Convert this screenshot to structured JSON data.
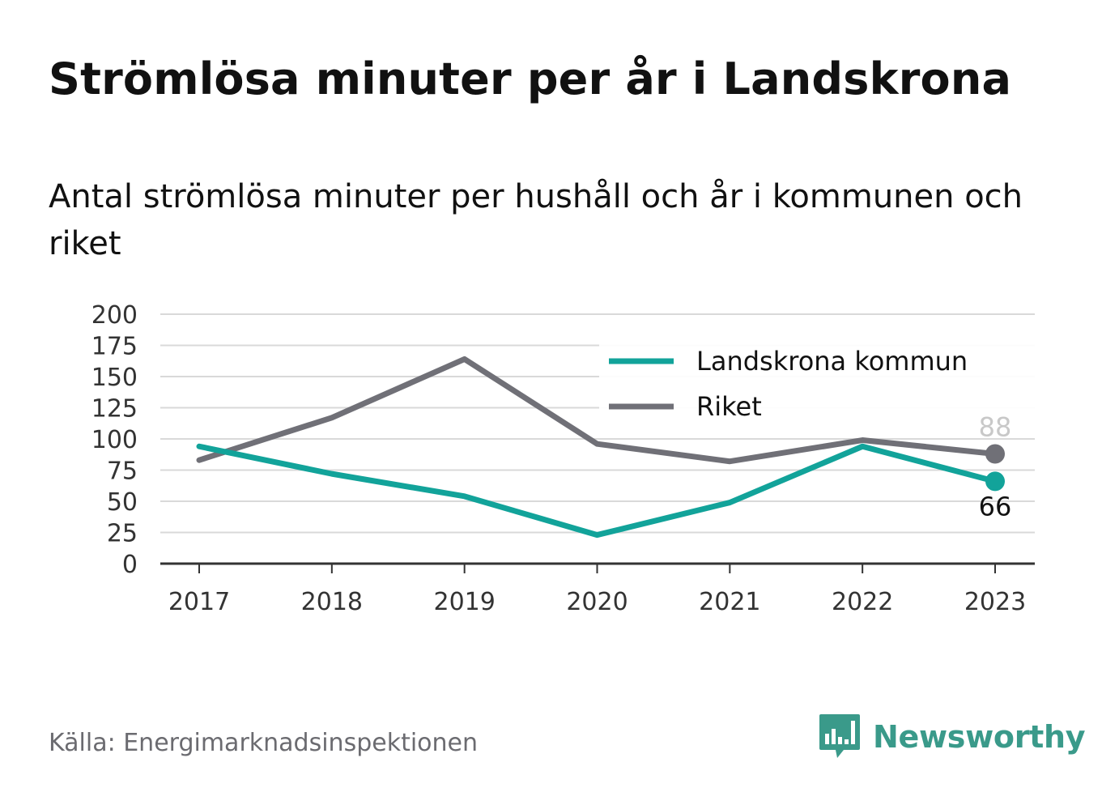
{
  "title": "Strömlösa minuter per år i Landskrona",
  "subtitle": "Antal strömlösa minuter per hushåll och år i kommunen och riket",
  "source": "Källa: Energimarknadsinspektionen",
  "brand": "Newsworthy",
  "colors": {
    "landskrona": "#12a39a",
    "riket": "#707077",
    "grid": "#d9d9d9",
    "axis": "#333333",
    "brand": "#3a9a8a"
  },
  "chart_data": {
    "type": "line",
    "x": [
      "2017",
      "2018",
      "2019",
      "2020",
      "2021",
      "2022",
      "2023"
    ],
    "ylim": [
      0,
      200
    ],
    "yticks": [
      "0",
      "25",
      "50",
      "75",
      "100",
      "125",
      "150",
      "175",
      "200"
    ],
    "grid": true,
    "legend_position": "top-right",
    "series": [
      {
        "name": "Landskrona kommun",
        "values": [
          94,
          72,
          54,
          23,
          49,
          94,
          66
        ],
        "end_label": "66"
      },
      {
        "name": "Riket",
        "values": [
          83,
          117,
          164,
          96,
          82,
          99,
          88
        ],
        "end_label": "88"
      }
    ]
  }
}
